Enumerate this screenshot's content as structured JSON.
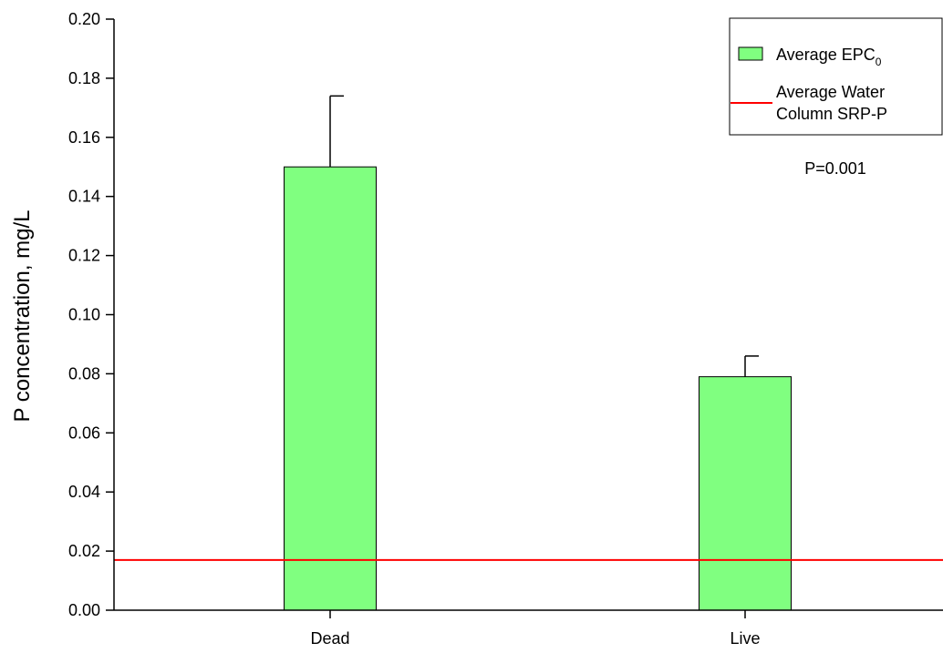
{
  "chart_data": {
    "type": "bar",
    "categories": [
      "Dead",
      "Live"
    ],
    "series": [
      {
        "name": "Average EPC0",
        "values": [
          0.15,
          0.079
        ],
        "error_upper": [
          0.174,
          0.086
        ],
        "color": "#80ff80"
      }
    ],
    "reference_lines": [
      {
        "name": "Average Water Column SRP-P",
        "value": 0.017,
        "color": "#ff0000"
      }
    ],
    "ylabel": "P concentration, mg/L",
    "xlabel": "",
    "ylim": [
      0.0,
      0.2
    ],
    "yticks": [
      "0.00",
      "0.02",
      "0.04",
      "0.06",
      "0.08",
      "0.10",
      "0.12",
      "0.14",
      "0.16",
      "0.18",
      "0.20"
    ],
    "legend": {
      "position": "top-right",
      "bar_label_main": "Average EPC",
      "bar_label_sub": "0",
      "line_label_lines": [
        "Average Water",
        "Column SRP-P"
      ]
    },
    "annotation": "P=0.001",
    "grid": false
  }
}
